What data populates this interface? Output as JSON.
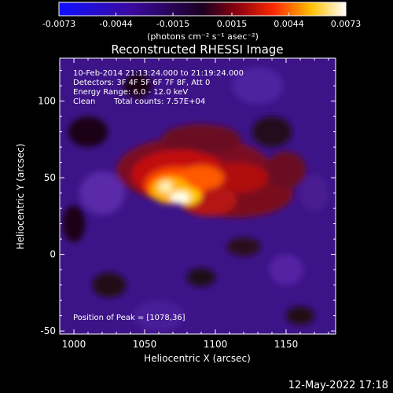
{
  "colorbar": {
    "tick_labels": [
      "-0.0073",
      "-0.0044",
      "-0.0015",
      "0.0015",
      "0.0044",
      "0.0073"
    ],
    "tick_values": [
      -0.0073,
      -0.0044,
      -0.0015,
      0.0015,
      0.0044,
      0.0073
    ],
    "range": [
      -0.0073,
      0.0073
    ],
    "unit_label": "(photons cm⁻² s⁻¹ asec⁻²)"
  },
  "chart_data": {
    "type": "heatmap",
    "title": "Reconstructed RHESSI Image",
    "xlabel": "Heliocentric X (arcsec)",
    "ylabel": "Heliocentric Y (arcsec)",
    "xlim": [
      990,
      1185
    ],
    "ylim": [
      -52,
      128
    ],
    "x_ticks": [
      1000,
      1050,
      1100,
      1150
    ],
    "y_ticks": [
      -50,
      0,
      50,
      100
    ],
    "x_tick_labels": [
      "1000",
      "1050",
      "1100",
      "1150"
    ],
    "y_tick_labels": [
      "-50",
      "0",
      "50",
      "100"
    ],
    "colormap": "purple-red-yellow-white",
    "peak": [
      1078,
      36
    ],
    "annotations": [
      "10-Feb-2014 21:13:24.000 to 21:19:24.000",
      "Detectors: 3F 4F 5F 6F 7F 8F, Att 0",
      "Energy Range: 6.0 - 12.0 keV",
      "Clean",
      "Total counts: 7.57E+04"
    ],
    "peak_label": "Position of Peak = [1078,36]"
  },
  "footer": {
    "timestamp": "12-May-2022 17:18"
  }
}
